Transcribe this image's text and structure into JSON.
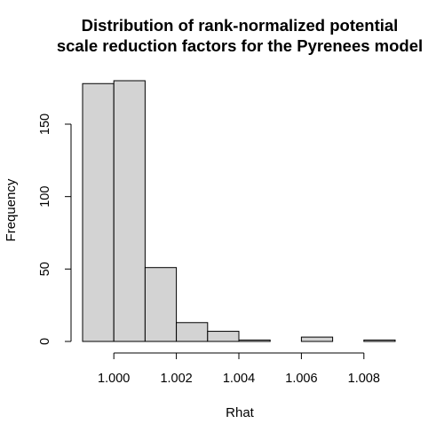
{
  "chart_data": {
    "type": "bar",
    "title_line1": "Distribution of rank-normalized potential",
    "title_line2": "scale reduction factors for the Pyrenees model",
    "xlabel": "Rhat",
    "ylabel": "Frequency",
    "xlim": [
      0.999,
      1.009
    ],
    "ylim": [
      0,
      180
    ],
    "x_ticks": [
      1.0,
      1.002,
      1.004,
      1.006,
      1.008
    ],
    "x_tick_labels": [
      "1.000",
      "1.002",
      "1.004",
      "1.006",
      "1.008"
    ],
    "y_ticks": [
      0,
      50,
      100,
      150
    ],
    "y_tick_labels": [
      "0",
      "50",
      "100",
      "150"
    ],
    "bins": [
      {
        "x0": 0.999,
        "x1": 1.0,
        "count": 178
      },
      {
        "x0": 1.0,
        "x1": 1.001,
        "count": 180
      },
      {
        "x0": 1.001,
        "x1": 1.002,
        "count": 51
      },
      {
        "x0": 1.002,
        "x1": 1.003,
        "count": 13
      },
      {
        "x0": 1.003,
        "x1": 1.004,
        "count": 7
      },
      {
        "x0": 1.004,
        "x1": 1.005,
        "count": 1
      },
      {
        "x0": 1.005,
        "x1": 1.006,
        "count": 0
      },
      {
        "x0": 1.006,
        "x1": 1.007,
        "count": 3
      },
      {
        "x0": 1.007,
        "x1": 1.008,
        "count": 0
      },
      {
        "x0": 1.008,
        "x1": 1.009,
        "count": 1
      }
    ],
    "bar_fill": "#d3d3d3",
    "bar_stroke": "#000000",
    "grid": false,
    "legend": "none"
  }
}
